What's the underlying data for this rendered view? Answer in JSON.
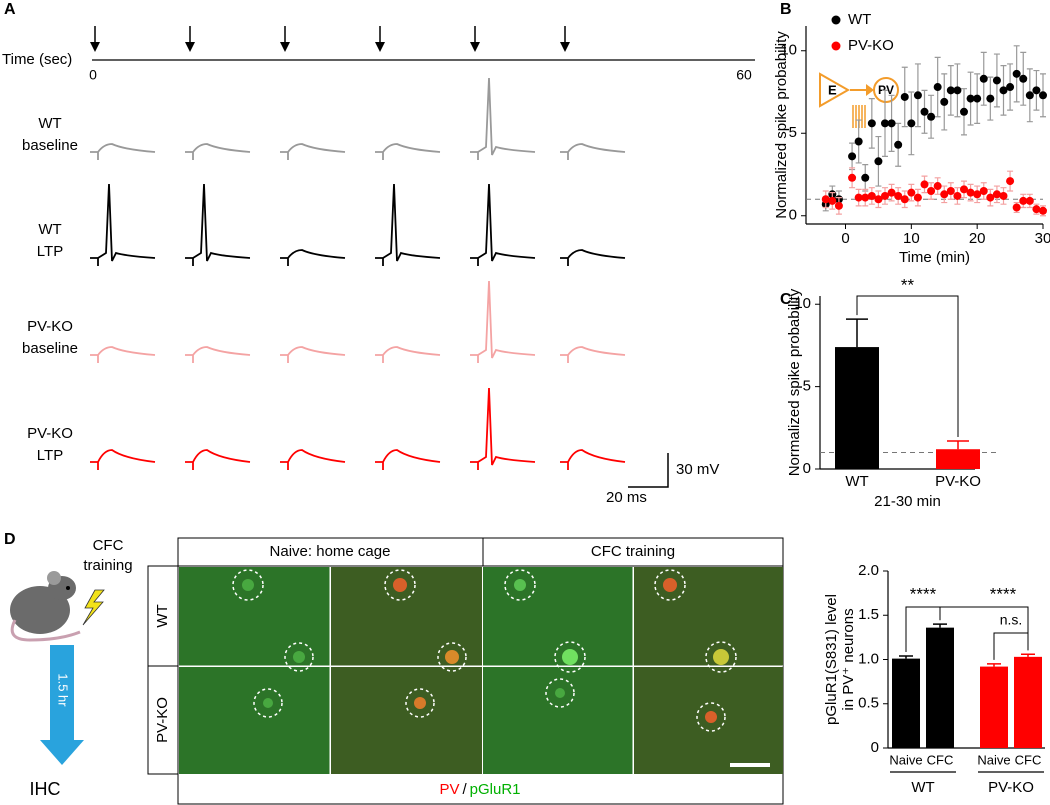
{
  "panel_labels": [
    "A",
    "B",
    "C",
    "D"
  ],
  "panel_a": {
    "time_label": "Time (sec)",
    "time_start": 0,
    "time_end": 60,
    "rows": [
      {
        "lines": [
          "WT",
          "baseline"
        ],
        "color": "#999999"
      },
      {
        "lines": [
          "WT",
          "LTP"
        ],
        "color": "#000000"
      },
      {
        "lines": [
          "PV-KO",
          "baseline"
        ],
        "color": "#f4a3a3"
      },
      {
        "lines": [
          "PV-KO",
          "LTP"
        ],
        "color": "#ff0000"
      }
    ],
    "scale_v": "30 mV",
    "scale_t": "20 ms"
  },
  "panel_d_images": {
    "side_labels": [
      "CFC",
      "training"
    ],
    "duration": "1.5 hr",
    "assay": "IHC",
    "headers": [
      "Naive: home cage",
      "CFC training"
    ],
    "row_labels": [
      "WT",
      "PV-KO"
    ],
    "legend": [
      "PV",
      "/",
      "pGluR1"
    ],
    "legend_colors": [
      "#ff0000",
      "#000000",
      "#00b000"
    ]
  },
  "chart_data": [
    {
      "type": "scatter",
      "xlabel": "Time (min)",
      "ylabel": "Normalized spike probability",
      "legend": "upper left",
      "inset_labels": [
        "E",
        "PV"
      ],
      "x": [
        -3,
        -2,
        -1,
        1,
        2,
        3,
        4,
        5,
        6,
        7,
        8,
        9,
        10,
        11,
        12,
        13,
        14,
        15,
        16,
        17,
        18,
        19,
        20,
        21,
        22,
        23,
        24,
        25,
        26,
        27,
        28,
        29,
        30
      ],
      "series": [
        {
          "name": "WT",
          "color": "#000000",
          "values": [
            0.7,
            1.3,
            1.0,
            3.6,
            4.5,
            2.3,
            5.6,
            3.3,
            5.6,
            5.6,
            4.3,
            7.2,
            5.6,
            7.3,
            6.3,
            6.0,
            7.8,
            6.9,
            7.6,
            7.6,
            6.3,
            7.1,
            7.1,
            8.3,
            7.1,
            8.2,
            7.6,
            7.8,
            8.6,
            8.3,
            7.3,
            7.6,
            7.3
          ],
          "errors": [
            0.4,
            0.5,
            0.5,
            0.8,
            1.3,
            0.8,
            1.5,
            1.5,
            2.0,
            1.7,
            1.3,
            1.8,
            1.9,
            1.9,
            1.3,
            1.3,
            1.8,
            1.7,
            1.5,
            1.6,
            1.4,
            1.6,
            1.5,
            1.6,
            1.3,
            1.6,
            1.5,
            1.4,
            1.7,
            1.6,
            1.6,
            1.2,
            1.3
          ]
        },
        {
          "name": "PV-KO",
          "color": "#ff0000",
          "values": [
            1.0,
            0.9,
            0.6,
            2.3,
            1.1,
            1.1,
            1.2,
            1.0,
            1.2,
            1.4,
            1.2,
            1.0,
            1.4,
            1.1,
            1.9,
            1.5,
            1.8,
            1.3,
            1.5,
            1.2,
            1.6,
            1.4,
            1.3,
            1.5,
            1.1,
            1.3,
            1.2,
            2.1,
            0.5,
            0.9,
            0.9,
            0.4,
            0.3
          ],
          "errors": [
            0.5,
            0.5,
            0.5,
            0.6,
            0.5,
            0.5,
            0.5,
            0.5,
            0.5,
            0.5,
            0.5,
            0.5,
            0.5,
            0.5,
            0.5,
            0.5,
            0.5,
            0.5,
            0.5,
            0.5,
            0.5,
            0.5,
            0.5,
            0.5,
            0.5,
            0.5,
            0.5,
            0.6,
            0.3,
            0.4,
            0.4,
            0.3,
            0.3
          ]
        }
      ],
      "xlim": [
        -6,
        30
      ],
      "xticks": [
        0,
        10,
        20,
        30
      ],
      "ylim": [
        -0.5,
        11.5
      ],
      "yticks": [
        0,
        5,
        10
      ],
      "reference_line": 1
    },
    {
      "type": "bar",
      "ylabel": "Normalized spike probability",
      "xlabel": "21-30 min",
      "categories": [
        "WT",
        "PV-KO"
      ],
      "values": [
        7.4,
        1.2
      ],
      "errors": [
        1.7,
        0.5
      ],
      "colors": [
        "#000000",
        "#ff0000"
      ],
      "ylim": [
        0,
        10.5
      ],
      "yticks": [
        0,
        5,
        10
      ],
      "reference_line": 1,
      "annotations": [
        "**"
      ]
    },
    {
      "type": "bar",
      "ylabel": [
        "pGluR1(S831) level",
        "in PV⁺ neurons"
      ],
      "categories": [
        "Naive",
        "CFC",
        "Naive",
        "CFC"
      ],
      "group_labels": [
        "WT",
        "PV-KO"
      ],
      "values": [
        1.01,
        1.36,
        0.92,
        1.03
      ],
      "errors": [
        0.03,
        0.04,
        0.03,
        0.03
      ],
      "colors": [
        "#000000",
        "#000000",
        "#ff0000",
        "#ff0000"
      ],
      "ylim": [
        0,
        2
      ],
      "yticks": [
        0,
        0.5,
        {
          "value": 1,
          "label": "1.0"
        },
        1.5,
        {
          "value": 2,
          "label": "2.0"
        }
      ],
      "annotations": [
        "****",
        "****",
        "n.s."
      ]
    }
  ]
}
